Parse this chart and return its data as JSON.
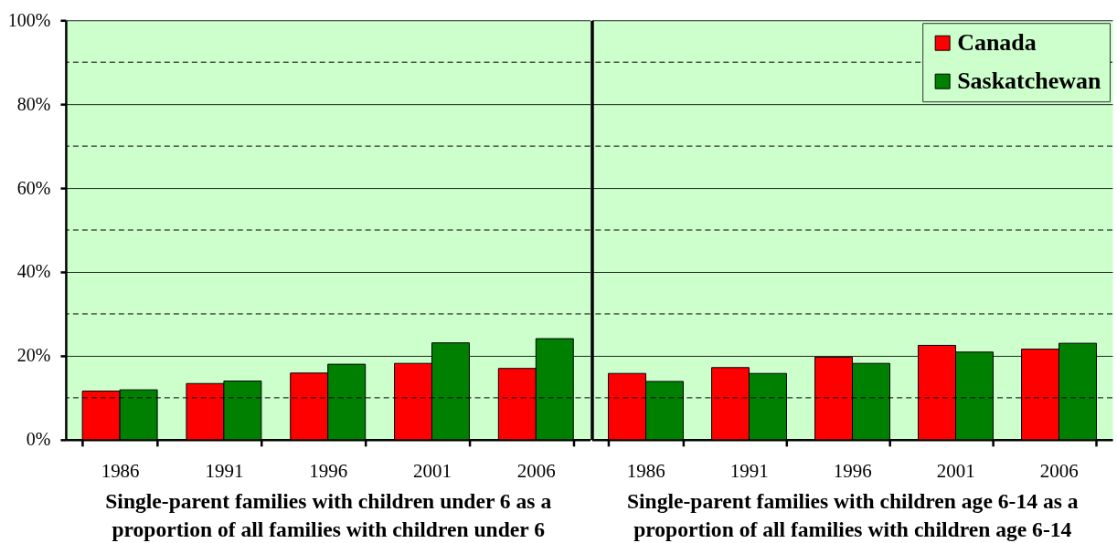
{
  "chart_data": [
    {
      "type": "bar",
      "categories": [
        "1986",
        "1991",
        "1996",
        "2001",
        "2006"
      ],
      "xlabel": "Single-parent families with children under 6 as a proportion of all families with children under 6",
      "series": [
        {
          "color": "#ff0000",
          "values": [
            11.6,
            13.4,
            15.9,
            18.2,
            17.0
          ]
        },
        {
          "color": "#008000",
          "values": [
            11.9,
            14.0,
            18.0,
            23.1,
            24.1
          ]
        }
      ],
      "ylim": [
        0,
        100
      ],
      "yticks": [
        {
          "value": 0,
          "label": "0%"
        },
        {
          "value": 20,
          "label": "20%"
        },
        {
          "value": 40,
          "label": "40%"
        },
        {
          "value": 60,
          "label": "60%"
        },
        {
          "value": 80,
          "label": "80%"
        },
        {
          "value": 100,
          "label": "100%"
        }
      ],
      "grid": "y",
      "ref_lines": [
        {
          "axis": "y",
          "value": 10,
          "line_style": "dashed",
          "color": "#000000"
        },
        {
          "axis": "y",
          "value": 30,
          "line_style": "dashed",
          "color": "#000000"
        },
        {
          "axis": "y",
          "value": 50,
          "line_style": "dashed",
          "color": "#000000"
        },
        {
          "axis": "y",
          "value": 70,
          "line_style": "dashed",
          "color": "#000000"
        },
        {
          "axis": "y",
          "value": 90,
          "line_style": "dashed",
          "color": "#000000"
        }
      ]
    },
    {
      "type": "bar",
      "categories": [
        "1986",
        "1991",
        "1996",
        "2001",
        "2006"
      ],
      "xlabel": "Single-parent families with children age 6-14 as a proportion of all families with children age 6-14",
      "series": [
        {
          "name": "Canada",
          "color": "#ff0000",
          "values": [
            15.8,
            17.2,
            19.7,
            22.5,
            21.6
          ]
        },
        {
          "name": "Saskatchewan",
          "color": "#008000",
          "values": [
            13.9,
            15.8,
            18.2,
            20.9,
            23.0
          ]
        }
      ],
      "ylim": [
        0,
        100
      ],
      "yticks": [
        {
          "value": 0,
          "label": null
        },
        {
          "value": 20,
          "label": null
        },
        {
          "value": 40,
          "label": null
        },
        {
          "value": 60,
          "label": null
        },
        {
          "value": 80,
          "label": null
        },
        {
          "value": 100,
          "label": null
        }
      ],
      "grid": "y",
      "tick_labels": "x",
      "legend": "top right",
      "ref_lines": [
        {
          "axis": "y",
          "value": 10,
          "line_style": "dashed",
          "color": "#000000"
        },
        {
          "axis": "y",
          "value": 30,
          "line_style": "dashed",
          "color": "#000000"
        },
        {
          "axis": "y",
          "value": 50,
          "line_style": "dashed",
          "color": "#000000"
        },
        {
          "axis": "y",
          "value": 70,
          "line_style": "dashed",
          "color": "#000000"
        },
        {
          "axis": "y",
          "value": 90,
          "line_style": "dashed",
          "color": "#000000"
        }
      ]
    }
  ]
}
